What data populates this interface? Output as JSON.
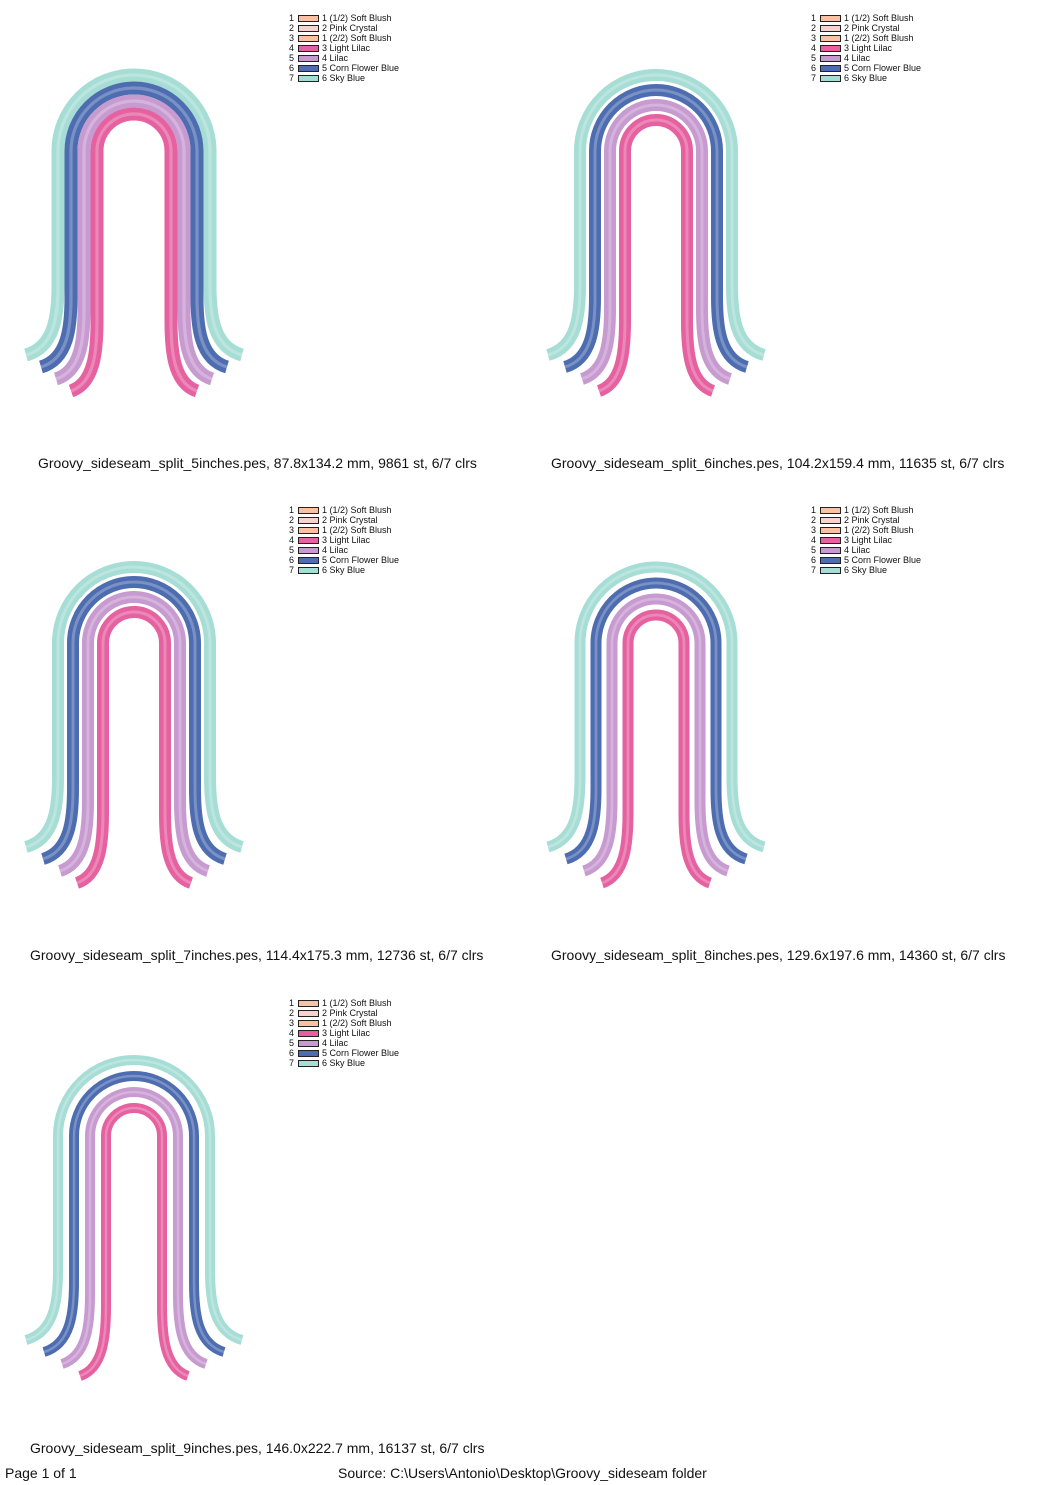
{
  "designs": [
    {
      "caption": "Groovy_sideseam_split_5inches.pes, 87.8x134.2 mm, 9861 st, 6/7 clrs",
      "legend": [
        {
          "num": "1",
          "label": "1 (1/2) Soft Blush",
          "color": "#F9C3A3"
        },
        {
          "num": "2",
          "label": "2 Pink Crystal",
          "color": "#F7D3CF"
        },
        {
          "num": "3",
          "label": "1 (2/2) Soft Blush",
          "color": "#F9C3A3"
        },
        {
          "num": "4",
          "label": "3 Light Lilac",
          "color": "#E561A0"
        },
        {
          "num": "5",
          "label": "4 Lilac",
          "color": "#C79AD0"
        },
        {
          "num": "6",
          "label": "5 Corn Flower Blue",
          "color": "#4D6DB0"
        },
        {
          "num": "7",
          "label": "6 Sky Blue",
          "color": "#A6DDD5"
        }
      ]
    },
    {
      "caption": "Groovy_sideseam_split_6inches.pes, 104.2x159.4 mm, 11635 st, 6/7 clrs",
      "legend": [
        {
          "num": "1",
          "label": "1 (1/2) Soft Blush",
          "color": "#F9C3A3"
        },
        {
          "num": "2",
          "label": "2 Pink Crystal",
          "color": "#F7D3CF"
        },
        {
          "num": "3",
          "label": "1 (2/2) Soft Blush",
          "color": "#F9C3A3"
        },
        {
          "num": "4",
          "label": "3 Light Lilac",
          "color": "#E561A0"
        },
        {
          "num": "5",
          "label": "4 Lilac",
          "color": "#C79AD0"
        },
        {
          "num": "6",
          "label": "5 Corn Flower Blue",
          "color": "#4D6DB0"
        },
        {
          "num": "7",
          "label": "6 Sky Blue",
          "color": "#A6DDD5"
        }
      ]
    },
    {
      "caption": "Groovy_sideseam_split_7inches.pes, 114.4x175.3 mm, 12736 st, 6/7 clrs",
      "legend": [
        {
          "num": "1",
          "label": "1 (1/2) Soft Blush",
          "color": "#F9C3A3"
        },
        {
          "num": "2",
          "label": "2 Pink Crystal",
          "color": "#F7D3CF"
        },
        {
          "num": "3",
          "label": "1 (2/2) Soft Blush",
          "color": "#F9C3A3"
        },
        {
          "num": "4",
          "label": "3 Light Lilac",
          "color": "#E561A0"
        },
        {
          "num": "5",
          "label": "4 Lilac",
          "color": "#C79AD0"
        },
        {
          "num": "6",
          "label": "5 Corn Flower Blue",
          "color": "#4D6DB0"
        },
        {
          "num": "7",
          "label": "6 Sky Blue",
          "color": "#A6DDD5"
        }
      ]
    },
    {
      "caption": "Groovy_sideseam_split_8inches.pes, 129.6x197.6 mm, 14360 st, 6/7 clrs",
      "legend": [
        {
          "num": "1",
          "label": "1 (1/2) Soft Blush",
          "color": "#F9C3A3"
        },
        {
          "num": "2",
          "label": "2 Pink Crystal",
          "color": "#F7D3CF"
        },
        {
          "num": "3",
          "label": "1 (2/2) Soft Blush",
          "color": "#F9C3A3"
        },
        {
          "num": "4",
          "label": "3 Light Lilac",
          "color": "#E561A0"
        },
        {
          "num": "5",
          "label": "4 Lilac",
          "color": "#C79AD0"
        },
        {
          "num": "6",
          "label": "5 Corn Flower Blue",
          "color": "#4D6DB0"
        },
        {
          "num": "7",
          "label": "6 Sky Blue",
          "color": "#A6DDD5"
        }
      ]
    },
    {
      "caption": "Groovy_sideseam_split_9inches.pes, 146.0x222.7 mm, 16137 st, 6/7 clrs",
      "legend": [
        {
          "num": "1",
          "label": "1 (1/2) Soft Blush",
          "color": "#F9C3A3"
        },
        {
          "num": "2",
          "label": "2 Pink Crystal",
          "color": "#F7D3CF"
        },
        {
          "num": "3",
          "label": "1 (2/2) Soft Blush",
          "color": "#F9C3A3"
        },
        {
          "num": "4",
          "label": "3 Light Lilac",
          "color": "#E561A0"
        },
        {
          "num": "5",
          "label": "4 Lilac",
          "color": "#C79AD0"
        },
        {
          "num": "6",
          "label": "5 Corn Flower Blue",
          "color": "#4D6DB0"
        },
        {
          "num": "7",
          "label": "6 Sky Blue",
          "color": "#A6DDD5"
        }
      ]
    }
  ],
  "footer": {
    "page": "Page 1 of 1",
    "source": "Source: C:\\Users\\Antonio\\Desktop\\Groovy_sideseam folder"
  }
}
